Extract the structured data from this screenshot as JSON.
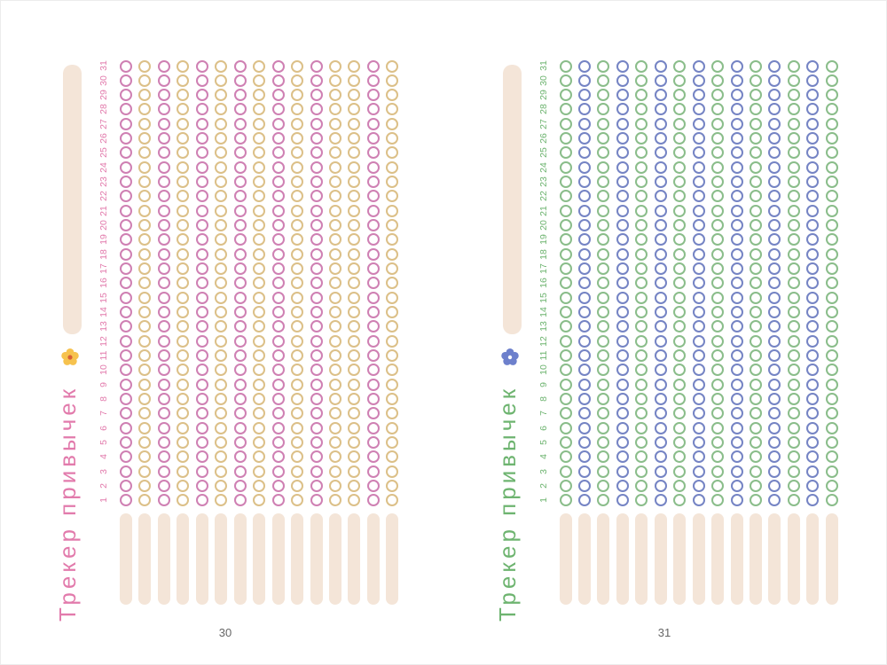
{
  "days": [
    "1",
    "2",
    "3",
    "4",
    "5",
    "6",
    "7",
    "8",
    "9",
    "10",
    "11",
    "12",
    "13",
    "14",
    "15",
    "16",
    "17",
    "18",
    "19",
    "20",
    "21",
    "22",
    "23",
    "24",
    "25",
    "26",
    "27",
    "28",
    "29",
    "30",
    "31"
  ],
  "pages": [
    {
      "page_number": "30",
      "title": "Трекер привычек",
      "accent_color": "#e27bac",
      "bar_color": "#f4e5d8",
      "flower": {
        "icon": "flower-icon",
        "petal_color": "#f6c24e",
        "center_color": "#d95f38"
      },
      "palette": {
        "pink": "#cf80b3",
        "gold": "#dcc088"
      },
      "column_colors": [
        "pink",
        "gold",
        "pink",
        "gold",
        "pink",
        "gold",
        "pink",
        "gold",
        "pink",
        "gold",
        "pink",
        "gold",
        "gold",
        "pink",
        "gold"
      ]
    },
    {
      "page_number": "31",
      "title": "Трекер привычек",
      "accent_color": "#6eb470",
      "bar_color": "#f4e5d8",
      "flower": {
        "icon": "flower-icon",
        "petal_color": "#6d80cc",
        "center_color": "#ffffff"
      },
      "palette": {
        "green": "#8abd8a",
        "blue": "#7584c4"
      },
      "column_colors": [
        "green",
        "blue",
        "green",
        "blue",
        "green",
        "blue",
        "green",
        "blue",
        "green",
        "blue",
        "green",
        "blue",
        "green",
        "blue",
        "green"
      ]
    }
  ],
  "page_number_color": "#666666"
}
